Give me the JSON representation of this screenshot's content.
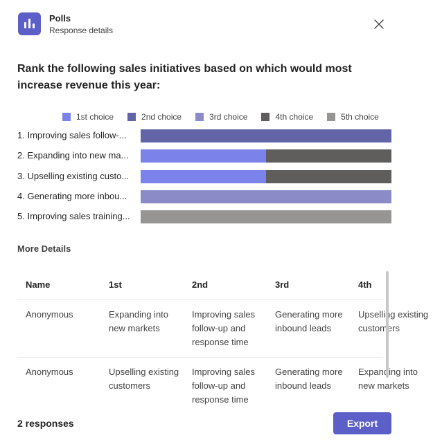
{
  "header": {
    "app_name": "Polls",
    "subtitle": "Response details",
    "icon": "poll-chart-icon",
    "close_icon": "close-icon"
  },
  "question": "Rank the following sales initiatives based on which would most increase revenue this year:",
  "colors": {
    "accent": "#5b5fc7",
    "choice1": "#7b83eb",
    "choice2": "#6264a7",
    "choice3": "#8b8cc7",
    "choice4": "#605e5c",
    "choice5": "#979593"
  },
  "chart_data": {
    "type": "bar",
    "orientation": "horizontal-stacked",
    "categories": [
      "1. Improving sales follow-up and response time",
      "2. Expanding into new markets",
      "3. Upselling existing customers",
      "4. Generating more inbound leads",
      "5. Improving sales training"
    ],
    "category_labels_shown": [
      "1. Improving sales follow-...",
      "2. Expanding into new ma...",
      "3. Upselling existing custo...",
      "4. Generating more inbou...",
      "5. Improving sales training..."
    ],
    "series": [
      {
        "name": "1st choice",
        "color": "#7b83eb",
        "values": [
          0,
          1,
          1,
          0,
          0
        ]
      },
      {
        "name": "2nd choice",
        "color": "#6264a7",
        "values": [
          2,
          0,
          0,
          0,
          0
        ]
      },
      {
        "name": "3rd choice",
        "color": "#8b8cc7",
        "values": [
          0,
          0,
          0,
          2,
          0
        ]
      },
      {
        "name": "4th choice",
        "color": "#605e5c",
        "values": [
          0,
          1,
          1,
          0,
          0
        ]
      },
      {
        "name": "5th choice",
        "color": "#979593",
        "values": [
          0,
          0,
          0,
          0,
          2
        ]
      }
    ],
    "legend_position": "top"
  },
  "details": {
    "title": "More Details",
    "columns": [
      "Name",
      "1st",
      "2nd",
      "3rd",
      "4th"
    ],
    "rows": [
      {
        "name": "Anonymous",
        "cells": [
          "Expanding into new markets",
          "Improving sales follow-up and response time",
          "Generating more inbound leads",
          "Upselling existing customers"
        ]
      },
      {
        "name": "Anonymous",
        "cells": [
          "Upselling existing customers",
          "Improving sales follow-up and response time",
          "Generating more inbound leads",
          "Expanding into new markets"
        ]
      }
    ]
  },
  "footer": {
    "responses": "2 responses",
    "export_label": "Export"
  }
}
